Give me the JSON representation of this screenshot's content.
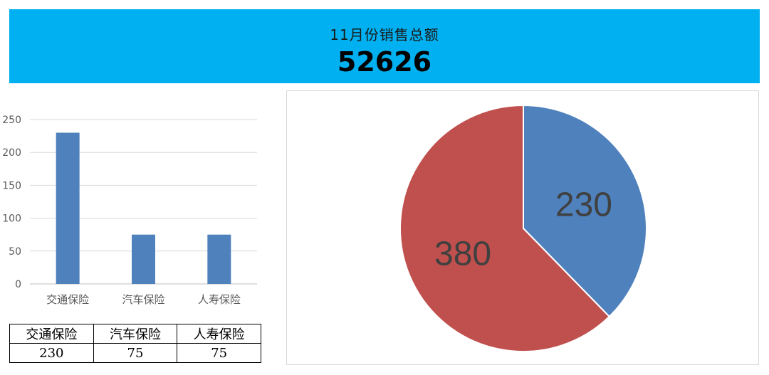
{
  "header": {
    "subtitle": "11月份销售总额",
    "total": "52626",
    "background": "#00b0f0"
  },
  "chart_data": [
    {
      "type": "bar",
      "categories": [
        "交通保险",
        "汽车保险",
        "人寿保险"
      ],
      "values": [
        230,
        75,
        75
      ],
      "ylim": [
        0,
        250
      ],
      "yticks": [
        0,
        50,
        100,
        150,
        200,
        250
      ],
      "grid": true,
      "legend": "none",
      "color": "#4f81bd"
    },
    {
      "type": "pie",
      "values": [
        230,
        380
      ],
      "labels": [
        "230",
        "380"
      ],
      "colors": [
        "#4f81bd",
        "#c0504d"
      ],
      "legend": "none"
    }
  ],
  "table": {
    "headers": [
      "交通保险",
      "汽车保险",
      "人寿保险"
    ],
    "rows": [
      [
        "230",
        "75",
        "75"
      ]
    ]
  }
}
